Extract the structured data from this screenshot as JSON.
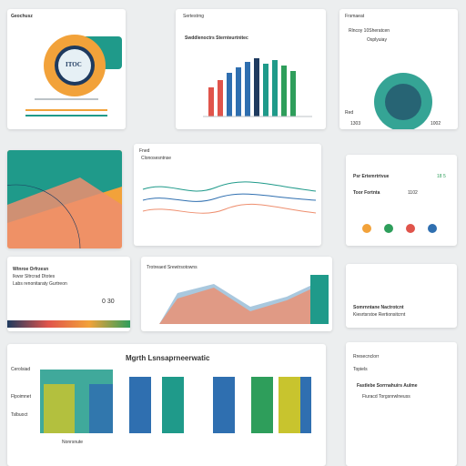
{
  "colors": {
    "orange": "#f2a23a",
    "teal": "#1f9a8a",
    "navy": "#1e3a5f",
    "red": "#e0544b",
    "blue": "#2f6fb0",
    "green": "#2e9e5b",
    "yellow": "#c8c42e",
    "salmon": "#ee8e6e",
    "lightblue": "#a9c8de"
  },
  "card_donut": {
    "title": "Geochusz",
    "logo_text": "ITOC"
  },
  "card_bars": {
    "header": "Sertestrng",
    "title": "Swddlenoctrs Sternteurtnitec"
  },
  "card_radial": {
    "header": "Frsmaeat",
    "line1": "Rlncoy 10Sheratcen",
    "line2": "Osplyuiay",
    "badge_left": "Red",
    "value_left": "1303",
    "value_right": "1002"
  },
  "card_wave": {
    "header": "Fned",
    "title": "Clonosesntnse"
  },
  "card_stats": {
    "label_a": "Psr Ertemrtrtvue",
    "label_b": "Toor Fortnta",
    "value": "1102",
    "code": "18 5"
  },
  "card_info": {
    "title": "Wtnroe Orfrzesn",
    "line1": "Ikwsr Sltrcrad Dtotes",
    "line2": "Labs renonitaraty Gurtreon",
    "value": "0 30"
  },
  "card_area": {
    "title": "Trotreaed Srewtrsotowns"
  },
  "card_legend": {
    "title": "Somrnntane Nactrotcnt",
    "line1": "Kiesrtsrstoe Rertionsitcrnt"
  },
  "card_columns": {
    "title": "Mgrth Lsnsaprneerwatic",
    "side_a": "Cerolsiad",
    "side_b": "Flpoimnet",
    "side_c": "Tslbuoct",
    "footer": "Nonrsnute"
  },
  "card_list": {
    "header": "Rresecnclorr",
    "sub": "Topiels",
    "item1": "Fastlebe Sorrnahuirs Aulme",
    "item2": "Fiuracd Torgsnrwlneuss"
  }
}
